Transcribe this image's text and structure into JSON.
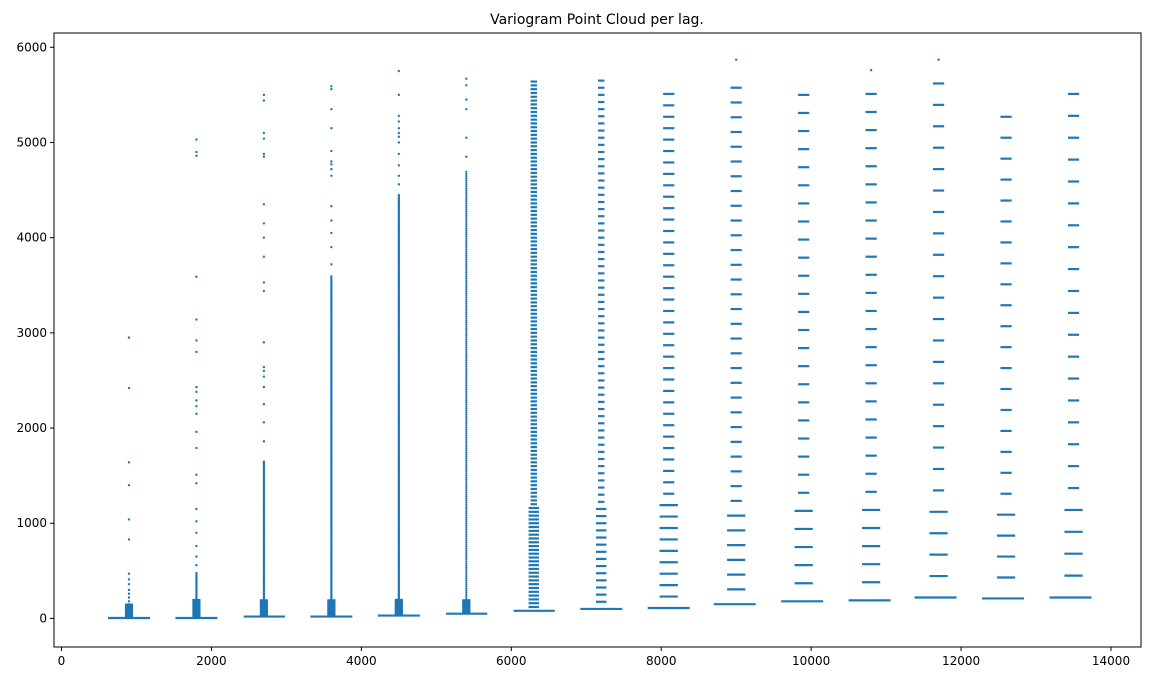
{
  "chart_data": {
    "type": "scatter",
    "title": "Variogram Point Cloud per lag.",
    "xlabel": "",
    "ylabel": "",
    "xlim": [
      -100,
      14400
    ],
    "ylim": [
      -300,
      6150
    ],
    "grid": false,
    "color": "#1f77b4",
    "x_ticks": [
      0,
      2000,
      4000,
      6000,
      8000,
      10000,
      12000,
      14000
    ],
    "x_tick_labels": [
      "0",
      "2000",
      "4000",
      "6000",
      "8000",
      "10000",
      "12000",
      "14000"
    ],
    "y_ticks": [
      0,
      1000,
      2000,
      3000,
      4000,
      5000,
      6000
    ],
    "y_tick_labels": [
      "0",
      "1000",
      "2000",
      "3000",
      "4000",
      "5000",
      "6000"
    ],
    "lags": [
      {
        "x": 900,
        "bar_from": 620,
        "bar_to": 1180,
        "bar_y": 5,
        "dense_to": 150,
        "dense_step": 8,
        "extra": [
          180,
          220,
          260,
          300,
          360,
          410,
          470,
          830,
          1040,
          1400,
          1640,
          2420,
          2950
        ]
      },
      {
        "x": 1800,
        "bar_from": 1520,
        "bar_to": 2080,
        "bar_y": 5,
        "dense_to": 480,
        "dense_step": 8,
        "extra": [
          560,
          650,
          760,
          900,
          1020,
          1150,
          1420,
          1510,
          1790,
          1960,
          2150,
          2230,
          2290,
          2380,
          2430,
          2800,
          2920,
          3140,
          3590,
          4860,
          4900,
          5030
        ]
      },
      {
        "x": 2700,
        "bar_from": 2430,
        "bar_to": 2980,
        "bar_y": 20,
        "dense_to": 1650,
        "dense_step": 9,
        "extra": [
          1860,
          2060,
          2250,
          2430,
          2540,
          2600,
          2640,
          2900,
          3440,
          3530,
          3800,
          4000,
          4150,
          4350,
          4850,
          4880,
          5040,
          5100,
          5440,
          5500
        ]
      },
      {
        "x": 3600,
        "bar_from": 3320,
        "bar_to": 3880,
        "bar_y": 20,
        "dense_to": 3600,
        "dense_step": 9,
        "extra": [
          3720,
          3900,
          4050,
          4180,
          4330,
          4650,
          4720,
          4770,
          4800,
          4910,
          5150,
          5350,
          5560,
          5590
        ]
      },
      {
        "x": 4500,
        "bar_from": 4220,
        "bar_to": 4780,
        "bar_y": 30,
        "dense_to": 4450,
        "dense_step": 9,
        "extra": [
          4560,
          4650,
          4760,
          4880,
          5000,
          5060,
          5100,
          5150,
          5220,
          5280,
          5500,
          5750
        ]
      },
      {
        "x": 5400,
        "bar_from": 5130,
        "bar_to": 5680,
        "bar_y": 50,
        "dense_to": 4700,
        "dense_step": 22,
        "extra": [
          4850,
          5050,
          5350,
          5450,
          5600,
          5670
        ]
      },
      {
        "x": 6300,
        "bar_from": 6030,
        "bar_to": 6580,
        "bar_y": 80,
        "dense_to": 5650,
        "dense_step": 40,
        "extra": []
      },
      {
        "x": 7200,
        "bar_from": 6920,
        "bar_to": 7480,
        "bar_y": 100,
        "dense_to": 5720,
        "dense_step": 75,
        "extra": []
      },
      {
        "x": 8100,
        "bar_from": 7820,
        "bar_to": 8380,
        "bar_y": 110,
        "dense_to": 5600,
        "dense_step": 120,
        "extra": []
      },
      {
        "x": 9000,
        "bar_from": 8700,
        "bar_to": 9260,
        "bar_y": 150,
        "dense_to": 5720,
        "dense_step": 155,
        "extra": [
          5870
        ]
      },
      {
        "x": 9900,
        "bar_from": 9600,
        "bar_to": 10160,
        "bar_y": 180,
        "dense_to": 5500,
        "dense_step": 190,
        "extra": []
      },
      {
        "x": 10800,
        "bar_from": 10500,
        "bar_to": 11060,
        "bar_y": 190,
        "dense_to": 5560,
        "dense_step": 190,
        "extra": [
          5760
        ]
      },
      {
        "x": 11700,
        "bar_from": 11380,
        "bar_to": 11940,
        "bar_y": 220,
        "dense_to": 5650,
        "dense_step": 225,
        "extra": [
          5870
        ]
      },
      {
        "x": 12600,
        "bar_from": 12280,
        "bar_to": 12840,
        "bar_y": 210,
        "dense_to": 5410,
        "dense_step": 220,
        "extra": []
      },
      {
        "x": 13500,
        "bar_from": 13180,
        "bar_to": 13740,
        "bar_y": 220,
        "dense_to": 5680,
        "dense_step": 230,
        "extra": []
      }
    ]
  }
}
